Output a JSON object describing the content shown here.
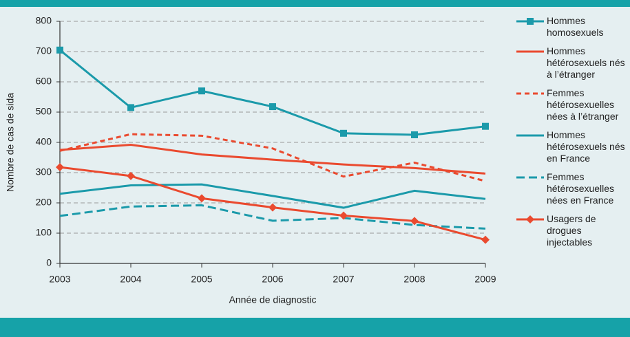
{
  "chart_data": {
    "type": "line",
    "x_label": "Année de diagnostic",
    "y_label": "Nombre de cas de sida",
    "x": [
      2003,
      2004,
      2005,
      2006,
      2007,
      2008,
      2009
    ],
    "xlim": [
      2003,
      2009
    ],
    "xticks": [
      2003,
      2004,
      2005,
      2006,
      2007,
      2008,
      2009
    ],
    "ylim": [
      0,
      800
    ],
    "yticks": [
      0,
      100,
      200,
      300,
      400,
      500,
      600,
      700,
      800
    ],
    "grid": true,
    "legend": "right",
    "series": [
      {
        "name": "Hommes homosexuels",
        "color": "#1b9aaa",
        "dashed": false,
        "marker": "square",
        "values": [
          705,
          515,
          570,
          518,
          430,
          425,
          453
        ]
      },
      {
        "name": "Hommes hétérosexuels nés à l’étranger",
        "color": "#ea4a2f",
        "dashed": false,
        "marker": null,
        "values": [
          375,
          392,
          360,
          343,
          327,
          315,
          297
        ]
      },
      {
        "name": "Femmes hétérosexuelles nées à l’étranger",
        "color": "#ea4a2f",
        "dashed": true,
        "marker": null,
        "values": [
          372,
          427,
          422,
          380,
          287,
          333,
          272
        ]
      },
      {
        "name": "Hommes hétérosexuels nés en France",
        "color": "#1b9aaa",
        "dashed": false,
        "marker": null,
        "values": [
          230,
          258,
          261,
          223,
          184,
          240,
          213
        ]
      },
      {
        "name": "Femmes hétérosexuelles nées en France",
        "color": "#1b9aaa",
        "dashed": true,
        "marker": null,
        "values": [
          157,
          188,
          192,
          141,
          150,
          127,
          115
        ]
      },
      {
        "name": "Usagers de drogues injectables",
        "color": "#ea4a2f",
        "dashed": false,
        "marker": "diamond",
        "values": [
          318,
          289,
          215,
          185,
          158,
          140,
          78
        ]
      }
    ]
  }
}
